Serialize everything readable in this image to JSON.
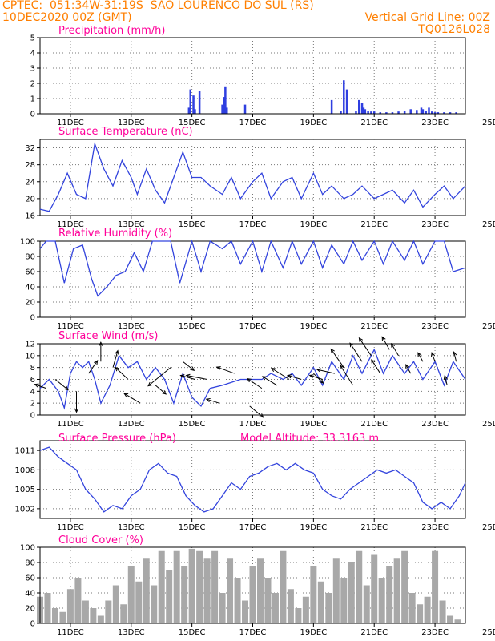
{
  "header": {
    "line1_left": "CPTEC:  051:34W-31:19S  SAO LOURENCO DO SUL (RS)",
    "line2_left": "10DEC2020 00Z (GMT)",
    "line2_right": "Vertical Grid Line: 00Z",
    "line3_right": "TQ0126L028"
  },
  "colors": {
    "header": "#ff7f00",
    "title": "#ff0099",
    "line": "#3344dd",
    "bar": "#2f3fe0",
    "cloud": "#a8a8a8",
    "arrow": "#000000"
  },
  "chart_data": [
    {
      "type": "bar",
      "title": "Precipitation (mm/h)",
      "x_ticks": [
        "11DEC",
        "13DEC",
        "15DEC",
        "17DEC",
        "19DEC",
        "21DEC",
        "23DEC",
        "25DEC"
      ],
      "ylim": [
        0,
        5
      ],
      "y_ticks": [
        "0",
        "1",
        "2",
        "3",
        "4",
        "5"
      ],
      "x_unit": "days since 10DEC2020 00Z",
      "x": [
        4.9,
        4.95,
        5.05,
        5.1,
        5.25,
        6.0,
        6.05,
        6.1,
        6.15,
        6.75,
        9.6,
        9.9,
        10.0,
        10.1,
        10.4,
        10.5,
        10.6,
        10.65,
        10.7,
        10.8,
        10.9,
        11.0,
        11.2,
        11.4,
        11.6,
        11.8,
        12.0,
        12.2,
        12.4,
        12.55,
        12.6,
        12.7,
        12.8,
        12.9,
        13.0,
        13.1,
        13.3,
        13.5,
        13.7
      ],
      "values": [
        0.4,
        1.6,
        1.2,
        0.3,
        1.5,
        0.6,
        1.1,
        1.8,
        0.4,
        0.6,
        0.9,
        0.2,
        2.2,
        1.6,
        0.2,
        0.9,
        0.7,
        0.4,
        0.3,
        0.2,
        0.15,
        0.15,
        0.1,
        0.1,
        0.1,
        0.15,
        0.2,
        0.3,
        0.25,
        0.4,
        0.3,
        0.2,
        0.4,
        0.15,
        0.1,
        0.1,
        0.1,
        0.1,
        0.1
      ]
    },
    {
      "type": "line",
      "title": "Surface Temperature (nC)",
      "x_ticks": [
        "11DEC",
        "13DEC",
        "15DEC",
        "17DEC",
        "19DEC",
        "21DEC",
        "23DEC",
        "25DEC"
      ],
      "ylim": [
        16,
        34
      ],
      "y_ticks": [
        "16",
        "20",
        "24",
        "28",
        "32"
      ],
      "x": [
        0,
        0.3,
        0.6,
        0.9,
        1.2,
        1.5,
        1.8,
        2.1,
        2.4,
        2.7,
        3.0,
        3.2,
        3.5,
        3.8,
        4.1,
        4.4,
        4.7,
        5.0,
        5.3,
        5.6,
        6.0,
        6.3,
        6.6,
        7.0,
        7.3,
        7.6,
        8.0,
        8.3,
        8.6,
        9.0,
        9.3,
        9.6,
        10.0,
        10.3,
        10.6,
        11.0,
        11.3,
        11.6,
        12.0,
        12.3,
        12.6,
        13.0,
        13.3,
        13.6,
        14.0
      ],
      "values": [
        17.5,
        17,
        21,
        26,
        21,
        20,
        33,
        27,
        23,
        29,
        25,
        21,
        27,
        22,
        19,
        25,
        31,
        25,
        25,
        23,
        21,
        25,
        20,
        24,
        26,
        20,
        24,
        25,
        20,
        26,
        21,
        23,
        20,
        21,
        23,
        20,
        21,
        22,
        19,
        22,
        18,
        21,
        23,
        20,
        23
      ]
    },
    {
      "type": "line",
      "title": "Relative Humidity (%)",
      "x_ticks": [
        "11DEC",
        "13DEC",
        "15DEC",
        "17DEC",
        "19DEC",
        "21DEC",
        "23DEC",
        "25DEC"
      ],
      "ylim": [
        0,
        100
      ],
      "y_ticks": [
        "0",
        "20",
        "40",
        "60",
        "80",
        "100"
      ],
      "x": [
        0,
        0.2,
        0.5,
        0.8,
        1.1,
        1.4,
        1.7,
        1.9,
        2.2,
        2.5,
        2.8,
        3.1,
        3.4,
        3.7,
        4.0,
        4.3,
        4.6,
        5.0,
        5.3,
        5.6,
        6.0,
        6.3,
        6.6,
        7.0,
        7.3,
        7.6,
        8.0,
        8.3,
        8.6,
        9.0,
        9.3,
        9.6,
        10.0,
        10.3,
        10.6,
        11.0,
        11.3,
        11.6,
        12.0,
        12.3,
        12.6,
        13.0,
        13.3,
        13.6,
        14.0
      ],
      "values": [
        90,
        100,
        100,
        45,
        90,
        95,
        50,
        28,
        40,
        55,
        60,
        85,
        60,
        100,
        100,
        100,
        45,
        100,
        60,
        100,
        90,
        100,
        70,
        100,
        60,
        100,
        65,
        100,
        70,
        100,
        65,
        95,
        70,
        100,
        75,
        100,
        70,
        100,
        75,
        100,
        70,
        100,
        100,
        60,
        65
      ]
    },
    {
      "type": "line",
      "title": "Surface Wind (m/s)",
      "x_ticks": [
        "11DEC",
        "13DEC",
        "15DEC",
        "17DEC",
        "19DEC",
        "21DEC",
        "23DEC",
        "25DEC"
      ],
      "ylim": [
        0,
        12
      ],
      "y_ticks": [
        "0",
        "2",
        "4",
        "6",
        "8",
        "10",
        "12"
      ],
      "x": [
        0,
        0.3,
        0.6,
        0.8,
        1.0,
        1.2,
        1.4,
        1.6,
        1.8,
        2.0,
        2.3,
        2.6,
        2.9,
        3.2,
        3.5,
        3.8,
        4.1,
        4.4,
        4.7,
        5.0,
        5.3,
        5.6,
        6.0,
        6.3,
        6.6,
        7.0,
        7.3,
        7.6,
        8.0,
        8.3,
        8.6,
        9.0,
        9.3,
        9.6,
        10.0,
        10.3,
        10.6,
        11.0,
        11.3,
        11.6,
        12.0,
        12.3,
        12.6,
        13.0,
        13.3,
        13.6,
        14.0
      ],
      "values": [
        4.5,
        6,
        4,
        1.2,
        7,
        9,
        8,
        9,
        6,
        2,
        5,
        10,
        8,
        9,
        6,
        8,
        6,
        2,
        7,
        3,
        1.5,
        4.5,
        5,
        5.5,
        6,
        6,
        6,
        7,
        6,
        7,
        5,
        8,
        5,
        9,
        6,
        10,
        7,
        11,
        7,
        10,
        7,
        9,
        6,
        9,
        5,
        9,
        6
      ],
      "arrows": {
        "x": [
          0.2,
          0.5,
          1.2,
          1.6,
          2.0,
          2.4,
          2.9,
          3.3,
          3.8,
          4.3,
          4.7,
          5.1,
          5.5,
          5.9,
          6.4,
          6.9,
          7.3,
          7.8,
          8.2,
          8.6,
          9.0,
          9.3,
          9.7,
          10.0,
          10.3,
          10.6,
          10.9,
          11.2,
          11.5,
          11.8,
          12.2,
          12.6,
          13.0,
          13.4,
          13.7
        ],
        "u": [
          -1.4,
          1.6,
          0,
          1.1,
          0,
          0.6,
          -1.6,
          -2,
          1.3,
          -2.8,
          1.4,
          -1.8,
          -2.6,
          -1.6,
          -2.2,
          1.7,
          -1.8,
          -1.8,
          -2.2,
          -1.7,
          1.2,
          -1.6,
          -2.2,
          -1.6,
          -1.6,
          -1.5,
          -1.5,
          -1.1,
          -0.9,
          -0.9,
          -0.6,
          -0.6,
          -0.4,
          -0.3,
          -0.3
        ],
        "v": [
          0.5,
          -1.3,
          -2.6,
          1.6,
          2.4,
          2.1,
          1.5,
          1.2,
          -1.1,
          -2.3,
          -1.1,
          0.5,
          0.5,
          0.5,
          0.8,
          -1.4,
          1.2,
          1.1,
          1.4,
          0.5,
          -1.2,
          0.5,
          0.5,
          2.3,
          2.5,
          2.3,
          2.2,
          1.7,
          1.6,
          1.5,
          1.1,
          1.1,
          1.1,
          1.2,
          1.2
        ]
      }
    },
    {
      "type": "line",
      "title": "Surface Pressure (hPa)",
      "annotation": "Model Altitude: 33.3163 m",
      "x_ticks": [
        "11DEC",
        "13DEC",
        "15DEC",
        "17DEC",
        "19DEC",
        "21DEC",
        "23DEC",
        "25DEC"
      ],
      "ylim": [
        1000.5,
        1012.5
      ],
      "y_ticks": [
        "1002",
        "1005",
        "1008",
        "1011"
      ],
      "x": [
        0,
        0.3,
        0.6,
        0.9,
        1.2,
        1.5,
        1.8,
        2.1,
        2.4,
        2.7,
        3.0,
        3.3,
        3.6,
        3.9,
        4.2,
        4.5,
        4.8,
        5.1,
        5.4,
        5.7,
        6.0,
        6.3,
        6.6,
        6.9,
        7.2,
        7.5,
        7.8,
        8.1,
        8.4,
        8.7,
        9.0,
        9.3,
        9.6,
        9.9,
        10.2,
        10.5,
        10.8,
        11.1,
        11.4,
        11.7,
        12.0,
        12.3,
        12.6,
        12.9,
        13.2,
        13.5,
        13.8,
        14.0
      ],
      "values": [
        1011,
        1011.5,
        1010,
        1009,
        1008,
        1005,
        1003.5,
        1001.5,
        1002.5,
        1002,
        1004,
        1005,
        1008,
        1009,
        1007.5,
        1007,
        1004,
        1002.5,
        1001.5,
        1002,
        1004,
        1006,
        1005,
        1007,
        1007.5,
        1008.5,
        1009,
        1008,
        1009,
        1008,
        1007.5,
        1005,
        1004,
        1003.5,
        1005,
        1006,
        1007,
        1008,
        1007.5,
        1008,
        1007,
        1006,
        1003,
        1002,
        1003,
        1002,
        1004,
        1006
      ]
    },
    {
      "type": "bar",
      "title": "Cloud Cover (%)",
      "x_ticks": [
        "11DEC",
        "13DEC",
        "15DEC",
        "17DEC",
        "19DEC",
        "21DEC",
        "23DEC",
        "25DEC"
      ],
      "ylim": [
        0,
        100
      ],
      "y_ticks": [
        "0",
        "20",
        "40",
        "60",
        "80",
        "100"
      ],
      "x": [
        0,
        0.25,
        0.5,
        0.75,
        1.0,
        1.25,
        1.5,
        1.75,
        2.0,
        2.25,
        2.5,
        2.75,
        3.0,
        3.25,
        3.5,
        3.75,
        4.0,
        4.25,
        4.5,
        4.75,
        5.0,
        5.25,
        5.5,
        5.75,
        6.0,
        6.25,
        6.5,
        6.75,
        7.0,
        7.25,
        7.5,
        7.75,
        8.0,
        8.25,
        8.5,
        8.75,
        9.0,
        9.25,
        9.5,
        9.75,
        10.0,
        10.25,
        10.5,
        10.75,
        11.0,
        11.25,
        11.5,
        11.75,
        12.0,
        12.25,
        12.5,
        12.75,
        13.0,
        13.25,
        13.5,
        13.75
      ],
      "values": [
        35,
        40,
        20,
        15,
        45,
        60,
        30,
        20,
        10,
        30,
        50,
        25,
        75,
        55,
        85,
        50,
        95,
        70,
        95,
        75,
        98,
        95,
        85,
        95,
        40,
        85,
        60,
        30,
        75,
        85,
        60,
        40,
        95,
        45,
        20,
        35,
        75,
        55,
        40,
        85,
        60,
        80,
        95,
        50,
        90,
        60,
        75,
        85,
        95,
        40,
        25,
        35,
        95,
        30,
        10,
        5
      ]
    }
  ]
}
